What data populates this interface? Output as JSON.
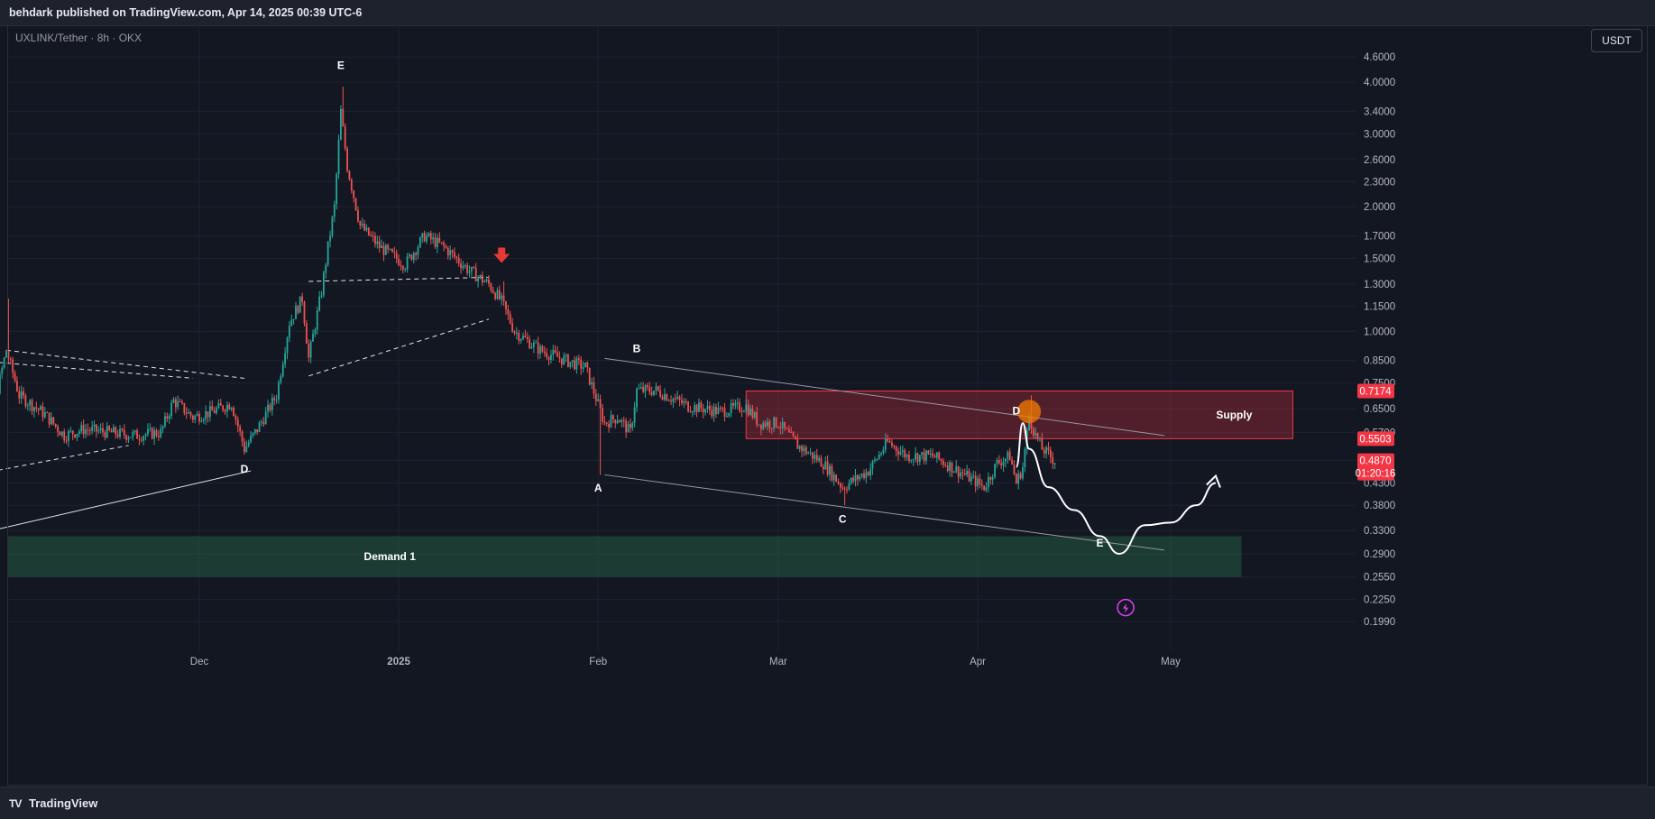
{
  "header": {
    "publisher_line": "behdark published on TradingView.com, Apr 14, 2025 00:39 UTC-6"
  },
  "symbol_line": "UXLINK/Tether · 8h · OKX",
  "currency_button": "USDT",
  "footer": {
    "brand_icon": "tradingview-logo-icon",
    "brand": "TradingView"
  },
  "colors": {
    "background": "#131722",
    "up": "#26a69a",
    "down": "#ef5350",
    "supply": "#f23645",
    "demand": "#1f4d2e",
    "price_tag": "#f23645"
  },
  "chart_data": {
    "type": "candlestick",
    "y_scale": "log",
    "grid": true,
    "y_ticks": [
      "4.6000",
      "4.0000",
      "3.4000",
      "3.0000",
      "2.6000",
      "2.3000",
      "2.0000",
      "1.7000",
      "1.5000",
      "1.3000",
      "1.1500",
      "1.0000",
      "0.8500",
      "0.7500",
      "0.6500",
      "0.5700",
      "0.4870",
      "0.4300",
      "0.3800",
      "0.3300",
      "0.2900",
      "0.2550",
      "0.2250",
      "0.1990"
    ],
    "x_ticks": [
      "Dec",
      "2025",
      "Feb",
      "Mar",
      "Apr",
      "May"
    ],
    "price_labels": [
      {
        "text": "0.7174",
        "value": 0.7174
      },
      {
        "text": "0.5503",
        "value": 0.5503
      },
      {
        "text": "0.4870",
        "value": 0.487
      },
      {
        "text": "01:20:16",
        "value": 0.466
      }
    ],
    "zones": [
      {
        "label": "Supply",
        "low": 0.5503,
        "high": 0.7174,
        "start": "2025-02-24",
        "end": "2025-05-20"
      },
      {
        "label": "Demand 1",
        "low": 0.255,
        "high": 0.32,
        "start": "2024-10-26",
        "end": "2025-05-12"
      }
    ],
    "wave_labels": [
      {
        "text": "E",
        "date": "2024-12-23",
        "value": 4.3
      },
      {
        "text": "D",
        "date": "2024-12-08",
        "value": 0.455
      },
      {
        "text": "A",
        "date": "2025-02-01",
        "value": 0.41
      },
      {
        "text": "B",
        "date": "2025-02-07",
        "value": 0.89
      },
      {
        "text": "C",
        "date": "2025-03-11",
        "value": 0.345
      },
      {
        "text": "D",
        "date": "2025-04-07",
        "value": 0.63
      },
      {
        "text": "E",
        "date": "2025-04-20",
        "value": 0.302
      }
    ],
    "annotations": [
      {
        "type": "arrow-down",
        "date": "2025-01-17",
        "value": 1.5
      },
      {
        "type": "circle",
        "date": "2025-04-09",
        "value": 0.64
      },
      {
        "type": "lightning-icon",
        "date": "2025-04-24",
        "value": 0.215
      }
    ],
    "series": [
      {
        "name": "UXLINK/Tether",
        "interval": "8h",
        "start": "2024-10-26",
        "end": "2025-04-13",
        "anchors": [
          [
            "2024-10-26",
            0.52
          ],
          [
            "2024-10-29",
            0.56
          ],
          [
            "2024-11-01",
            0.9
          ],
          [
            "2024-11-03",
            0.7
          ],
          [
            "2024-11-07",
            0.63
          ],
          [
            "2024-11-10",
            0.56
          ],
          [
            "2024-11-13",
            0.58
          ],
          [
            "2024-11-17",
            0.57
          ],
          [
            "2024-11-21",
            0.56
          ],
          [
            "2024-11-25",
            0.57
          ],
          [
            "2024-11-27",
            0.68
          ],
          [
            "2024-11-30",
            0.62
          ],
          [
            "2024-12-03",
            0.64
          ],
          [
            "2024-12-06",
            0.67
          ],
          [
            "2024-12-08",
            0.52
          ],
          [
            "2024-12-10",
            0.58
          ],
          [
            "2024-12-13",
            0.7
          ],
          [
            "2024-12-15",
            1.05
          ],
          [
            "2024-12-17",
            1.2
          ],
          [
            "2024-12-18",
            0.86
          ],
          [
            "2024-12-20",
            1.25
          ],
          [
            "2024-12-21",
            1.6
          ],
          [
            "2024-12-22",
            2.0
          ],
          [
            "2024-12-23",
            3.4
          ],
          [
            "2024-12-24",
            2.5
          ],
          [
            "2024-12-26",
            1.8
          ],
          [
            "2024-12-29",
            1.6
          ],
          [
            "2025-01-02",
            1.45
          ],
          [
            "2025-01-05",
            1.7
          ],
          [
            "2025-01-08",
            1.6
          ],
          [
            "2025-01-12",
            1.4
          ],
          [
            "2025-01-15",
            1.3
          ],
          [
            "2025-01-17",
            1.18
          ],
          [
            "2025-01-19",
            1.0
          ],
          [
            "2025-01-23",
            0.9
          ],
          [
            "2025-01-27",
            0.85
          ],
          [
            "2025-01-30",
            0.82
          ],
          [
            "2025-02-02",
            0.6
          ],
          [
            "2025-02-04",
            0.62
          ],
          [
            "2025-02-06",
            0.57
          ],
          [
            "2025-02-07",
            0.72
          ],
          [
            "2025-02-10",
            0.72
          ],
          [
            "2025-02-15",
            0.66
          ],
          [
            "2025-02-20",
            0.64
          ],
          [
            "2025-02-24",
            0.66
          ],
          [
            "2025-02-26",
            0.6
          ],
          [
            "2025-03-01",
            0.6
          ],
          [
            "2025-03-04",
            0.53
          ],
          [
            "2025-03-08",
            0.48
          ],
          [
            "2025-03-11",
            0.42
          ],
          [
            "2025-03-15",
            0.46
          ],
          [
            "2025-03-18",
            0.54
          ],
          [
            "2025-03-21",
            0.5
          ],
          [
            "2025-03-25",
            0.5
          ],
          [
            "2025-03-28",
            0.47
          ],
          [
            "2025-03-31",
            0.44
          ],
          [
            "2025-04-02",
            0.42
          ],
          [
            "2025-04-04",
            0.48
          ],
          [
            "2025-04-06",
            0.5
          ],
          [
            "2025-04-07",
            0.43
          ],
          [
            "2025-04-08",
            0.47
          ],
          [
            "2025-04-09",
            0.62
          ],
          [
            "2025-04-10",
            0.56
          ],
          [
            "2025-04-11",
            0.52
          ],
          [
            "2025-04-13",
            0.487
          ]
        ]
      }
    ],
    "projection": [
      [
        "2025-04-07",
        0.47
      ],
      [
        "2025-04-08",
        0.6
      ],
      [
        "2025-04-09",
        0.52
      ],
      [
        "2025-04-12",
        0.42
      ],
      [
        "2025-04-16",
        0.37
      ],
      [
        "2025-04-20",
        0.32
      ],
      [
        "2025-04-23",
        0.29
      ],
      [
        "2025-04-27",
        0.34
      ],
      [
        "2025-05-01",
        0.345
      ],
      [
        "2025-05-05",
        0.38
      ],
      [
        "2025-05-08",
        0.43
      ]
    ]
  }
}
